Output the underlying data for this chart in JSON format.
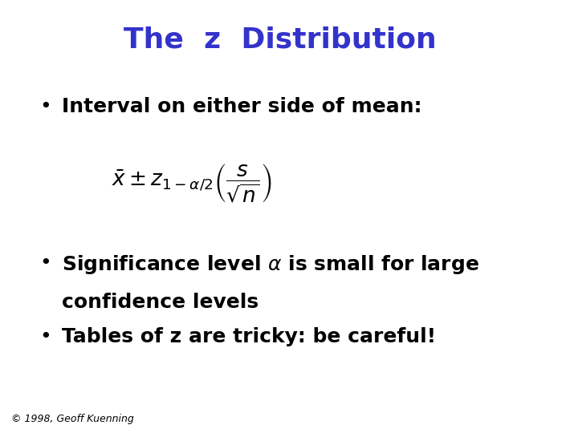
{
  "title": "The  z  Distribution",
  "title_color": "#3333CC",
  "title_fontsize": 26,
  "bullet1": "Interval on either side of mean:",
  "formula": "$\\bar{x} \\pm z_{1-\\alpha/2}\\left(\\dfrac{s}{\\sqrt{n}}\\right)$",
  "bullet2a": "Significance level $\\alpha$ is small for large",
  "bullet2b": "confidence levels",
  "bullet3": "Tables of z are tricky: be careful!",
  "footer": "© 1998, Geoff Kuenning",
  "background_color": "#ffffff",
  "text_color": "#000000",
  "bullet_fontsize": 18,
  "formula_fontsize": 19,
  "footer_fontsize": 9
}
